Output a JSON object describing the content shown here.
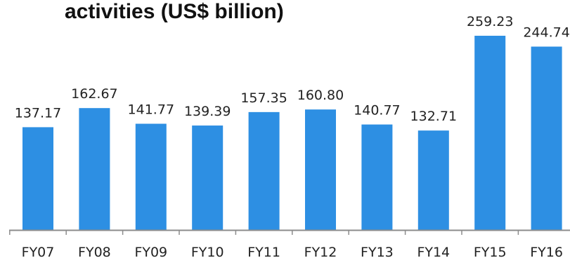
{
  "chart_data": {
    "type": "bar",
    "title": "activities (US$ billion)",
    "categories": [
      "FY07",
      "FY08",
      "FY09",
      "FY10",
      "FY11",
      "FY12",
      "FY13",
      "FY14",
      "FY15",
      "FY16"
    ],
    "values": [
      137.17,
      162.67,
      141.77,
      139.39,
      157.35,
      160.8,
      140.77,
      132.71,
      259.23,
      244.74
    ],
    "value_labels": [
      "137.17",
      "162.67",
      "141.77",
      "139.39",
      "157.35",
      "160.80",
      "140.77",
      "132.71",
      "259.23",
      "244.74"
    ],
    "xlabel": "",
    "ylabel": "",
    "ylim": [
      0,
      290
    ],
    "grid": false,
    "legend": "none",
    "bar_color": "#2d8fe3",
    "axis_color": "#8c8c8c"
  }
}
